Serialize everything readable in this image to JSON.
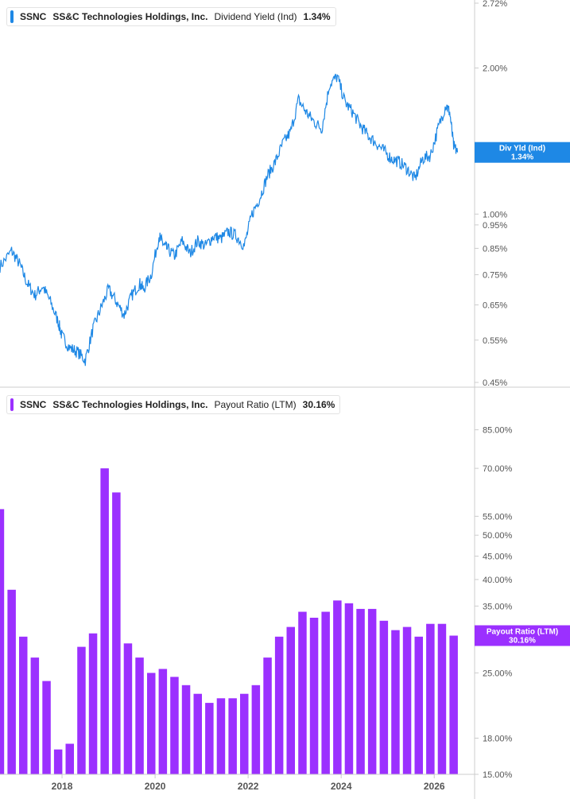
{
  "panels": [
    {
      "legend": {
        "ticker": "SSNC",
        "company": "SS&C Technologies Holdings, Inc.",
        "metric": "Dividend Yield (Ind)",
        "value": "1.34%"
      },
      "tag": {
        "label": "Div Yld (Ind)",
        "value": "1.34%"
      }
    },
    {
      "legend": {
        "ticker": "SSNC",
        "company": "SS&C Technologies Holdings, Inc.",
        "metric": "Payout Ratio (LTM)",
        "value": "30.16%"
      },
      "tag": {
        "label": "Payout Ratio (LTM)",
        "value": "30.16%"
      }
    }
  ],
  "colors": {
    "yield_line": "#1e88e5",
    "payout_bar": "#9b30ff",
    "axis": "#cccccc",
    "text": "#555555"
  },
  "chart_data": [
    {
      "type": "line",
      "name": "Dividend Yield (Ind)",
      "yscale": "log",
      "ylim": [
        0.45,
        2.72
      ],
      "yticks": [
        "2.72%",
        "2.00%",
        "1.00%",
        "0.95%",
        "0.85%",
        "0.75%",
        "0.65%",
        "0.55%",
        "0.45%"
      ],
      "xlim": [
        "2016-09",
        "2026-11"
      ],
      "x": [
        "2016-09",
        "2016-12",
        "2017-02",
        "2017-04",
        "2017-06",
        "2017-08",
        "2017-10",
        "2017-12",
        "2018-01",
        "2018-03",
        "2018-05",
        "2018-07",
        "2018-09",
        "2018-11",
        "2019-01",
        "2019-03",
        "2019-05",
        "2019-07",
        "2019-09",
        "2019-10",
        "2019-12",
        "2020-02",
        "2020-03",
        "2020-04",
        "2020-06",
        "2020-08",
        "2020-10",
        "2020-12",
        "2021-02",
        "2021-04",
        "2021-06",
        "2021-08",
        "2021-10",
        "2021-12",
        "2022-02",
        "2022-04",
        "2022-06",
        "2022-08",
        "2022-10",
        "2022-12",
        "2023-02",
        "2023-04",
        "2023-06",
        "2023-08",
        "2023-10",
        "2023-12",
        "2024-02",
        "2024-04",
        "2024-06",
        "2024-08",
        "2024-10",
        "2024-12",
        "2025-02",
        "2025-04",
        "2025-06",
        "2025-08",
        "2025-10",
        "2025-12",
        "2026-02",
        "2026-04",
        "2026-05",
        "2026-06",
        "2026-07"
      ],
      "values": [
        0.78,
        0.84,
        0.79,
        0.72,
        0.68,
        0.71,
        0.66,
        0.6,
        0.56,
        0.53,
        0.52,
        0.5,
        0.58,
        0.64,
        0.7,
        0.66,
        0.62,
        0.68,
        0.72,
        0.7,
        0.75,
        0.9,
        0.87,
        0.85,
        0.82,
        0.88,
        0.83,
        0.88,
        0.86,
        0.9,
        0.89,
        0.92,
        0.9,
        0.86,
        1.0,
        1.08,
        1.2,
        1.28,
        1.4,
        1.48,
        1.72,
        1.62,
        1.55,
        1.5,
        1.85,
        1.92,
        1.7,
        1.62,
        1.52,
        1.45,
        1.4,
        1.35,
        1.3,
        1.28,
        1.24,
        1.18,
        1.3,
        1.32,
        1.5,
        1.68,
        1.62,
        1.38,
        1.34
      ]
    },
    {
      "type": "bar",
      "name": "Payout Ratio (LTM)",
      "yscale": "log",
      "ylim": [
        15,
        100
      ],
      "yticks": [
        "85.00%",
        "70.00%",
        "55.00%",
        "50.00%",
        "45.00%",
        "40.00%",
        "35.00%",
        "30.00%",
        "25.00%",
        "18.00%",
        "15.00%"
      ],
      "xticks": [
        "2018",
        "2020",
        "2022",
        "2024",
        "2026"
      ],
      "x": [
        "2016-09",
        "2016-12",
        "2017-03",
        "2017-06",
        "2017-09",
        "2017-12",
        "2018-03",
        "2018-06",
        "2018-09",
        "2018-12",
        "2019-03",
        "2019-06",
        "2019-09",
        "2019-12",
        "2020-03",
        "2020-06",
        "2020-09",
        "2020-12",
        "2021-03",
        "2021-06",
        "2021-09",
        "2021-12",
        "2022-03",
        "2022-06",
        "2022-09",
        "2022-12",
        "2023-03",
        "2023-06",
        "2023-09",
        "2023-12",
        "2024-03",
        "2024-06",
        "2024-09",
        "2024-12",
        "2025-03",
        "2025-06",
        "2025-09",
        "2025-12",
        "2026-03",
        "2026-06"
      ],
      "values": [
        57,
        38,
        30,
        27,
        24,
        17,
        17.5,
        28.5,
        30.5,
        70,
        62,
        29,
        27,
        25,
        25.5,
        24.5,
        23.5,
        22.5,
        21.5,
        22,
        22,
        22.5,
        23.5,
        27,
        30,
        31.5,
        34,
        33,
        34,
        36,
        35.5,
        34.5,
        34.5,
        32.5,
        31,
        31.5,
        30,
        32,
        32,
        30.16
      ]
    }
  ]
}
